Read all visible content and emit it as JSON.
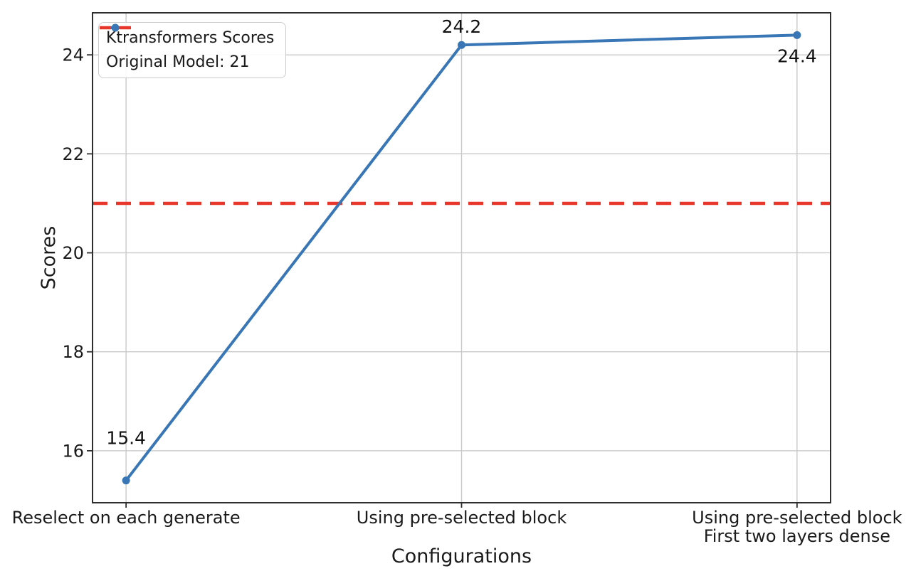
{
  "chart_data": {
    "type": "line",
    "title": "",
    "xlabel": "Configurations",
    "ylabel": "Scores",
    "categories": [
      "Reselect on each generate",
      "Using pre-selected block",
      "Using pre-selected block\nFirst two layers dense"
    ],
    "series": [
      {
        "name": "Ktransformers Scores",
        "values": [
          15.4,
          24.2,
          24.4
        ],
        "point_labels": [
          "15.4",
          "24.2",
          "24.4"
        ],
        "color": "#3876b5",
        "marker": "circle"
      }
    ],
    "reference_line": {
      "label": "Original Model: 21",
      "value": 21,
      "color": "#e8352a",
      "style": "dashed"
    },
    "legend": {
      "position": "upper left",
      "entries": [
        {
          "label": "Ktransformers Scores"
        },
        {
          "label": "Original Model: 21"
        }
      ]
    },
    "axes": {
      "ylim": [
        14.95,
        24.85
      ],
      "yticks": [
        16,
        18,
        20,
        22,
        24
      ],
      "xlim": [
        -0.1,
        2.1
      ],
      "grid": true
    },
    "colors": {
      "grid": "#c9c9c9",
      "spine": "#2e2e2e",
      "text": "#1a1a1a",
      "background": "#ffffff"
    }
  }
}
